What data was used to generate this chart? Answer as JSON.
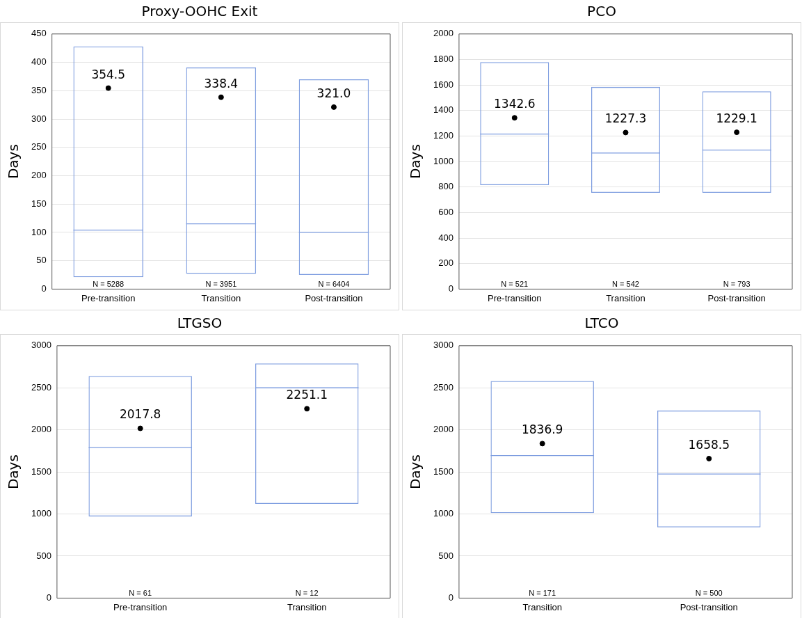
{
  "chart_data": [
    {
      "type": "box",
      "title": "Proxy-OOHC Exit",
      "ylabel": "Days",
      "categories": [
        "Pre-transition",
        "Transition",
        "Post-transition"
      ],
      "ylim": [
        0,
        450
      ],
      "yticks": [
        0,
        50,
        100,
        150,
        200,
        250,
        300,
        350,
        400,
        450
      ],
      "grid": "y",
      "legend": false,
      "series": [
        {
          "type": "box",
          "color": "#7f9ee0",
          "boxes": [
            {
              "low": 21,
              "q1": 21,
              "median": 104,
              "q3": 428,
              "high": 428
            },
            {
              "low": 27,
              "q1": 27,
              "median": 115,
              "q3": 391,
              "high": 391
            },
            {
              "low": 25,
              "q1": 25,
              "median": 100,
              "q3": 370,
              "high": 370
            }
          ]
        },
        {
          "type": "scatter",
          "color": "#000000",
          "x": [
            "Pre-transition",
            "Transition",
            "Post-transition"
          ],
          "values": [
            354.5,
            338.4,
            321.0
          ],
          "value_labels": [
            "354.5",
            "338.4",
            "321.0"
          ]
        }
      ],
      "annotations": [
        "N = 5288",
        "N = 3951",
        "N = 6404"
      ]
    },
    {
      "type": "box",
      "title": "PCO",
      "ylabel": "Days",
      "categories": [
        "Pre-transition",
        "Transition",
        "Post-transition"
      ],
      "ylim": [
        0,
        2000
      ],
      "yticks": [
        0,
        200,
        400,
        600,
        800,
        1000,
        1200,
        1400,
        1600,
        1800,
        2000
      ],
      "grid": "y",
      "legend": false,
      "series": [
        {
          "type": "box",
          "color": "#7f9ee0",
          "boxes": [
            {
              "low": 815,
              "q1": 815,
              "median": 1215,
              "q3": 1780,
              "high": 1780
            },
            {
              "low": 755,
              "q1": 755,
              "median": 1067,
              "q3": 1585,
              "high": 1585
            },
            {
              "low": 755,
              "q1": 755,
              "median": 1090,
              "q3": 1550,
              "high": 1550
            }
          ]
        },
        {
          "type": "scatter",
          "color": "#000000",
          "x": [
            "Pre-transition",
            "Transition",
            "Post-transition"
          ],
          "values": [
            1342.6,
            1227.3,
            1229.1
          ],
          "value_labels": [
            "1342.6",
            "1227.3",
            "1229.1"
          ]
        }
      ],
      "annotations": [
        "N = 521",
        "N = 542",
        "N = 793"
      ]
    },
    {
      "type": "box",
      "title": "LTGSO",
      "ylabel": "Days",
      "categories": [
        "Pre-transition",
        "Transition"
      ],
      "ylim": [
        0,
        3000
      ],
      "yticks": [
        0,
        500,
        1000,
        1500,
        2000,
        2500,
        3000
      ],
      "grid": "y",
      "legend": false,
      "series": [
        {
          "type": "box",
          "color": "#7f9ee0",
          "boxes": [
            {
              "low": 970,
              "q1": 970,
              "median": 1790,
              "q3": 2640,
              "high": 2640
            },
            {
              "low": 1120,
              "q1": 1120,
              "median": 2500,
              "q3": 2790,
              "high": 2790
            }
          ]
        },
        {
          "type": "scatter",
          "color": "#000000",
          "x": [
            "Pre-transition",
            "Transition"
          ],
          "values": [
            2017.8,
            2251.1
          ],
          "value_labels": [
            "2017.8",
            "2251.1"
          ]
        }
      ],
      "annotations": [
        "N = 61",
        "N = 12"
      ]
    },
    {
      "type": "box",
      "title": "LTCO",
      "ylabel": "Days",
      "categories": [
        "Transition",
        "Post-transition"
      ],
      "ylim": [
        0,
        3000
      ],
      "yticks": [
        0,
        500,
        1000,
        1500,
        2000,
        2500,
        3000
      ],
      "grid": "y",
      "legend": false,
      "series": [
        {
          "type": "box",
          "color": "#7f9ee0",
          "boxes": [
            {
              "low": 1010,
              "q1": 1010,
              "median": 1695,
              "q3": 2580,
              "high": 2580
            },
            {
              "low": 840,
              "q1": 840,
              "median": 1475,
              "q3": 2230,
              "high": 2230
            }
          ]
        },
        {
          "type": "scatter",
          "color": "#000000",
          "x": [
            "Transition",
            "Post-transition"
          ],
          "values": [
            1836.9,
            1658.5
          ],
          "value_labels": [
            "1836.9",
            "1658.5"
          ]
        }
      ],
      "annotations": [
        "N = 171",
        "N = 500"
      ]
    }
  ]
}
